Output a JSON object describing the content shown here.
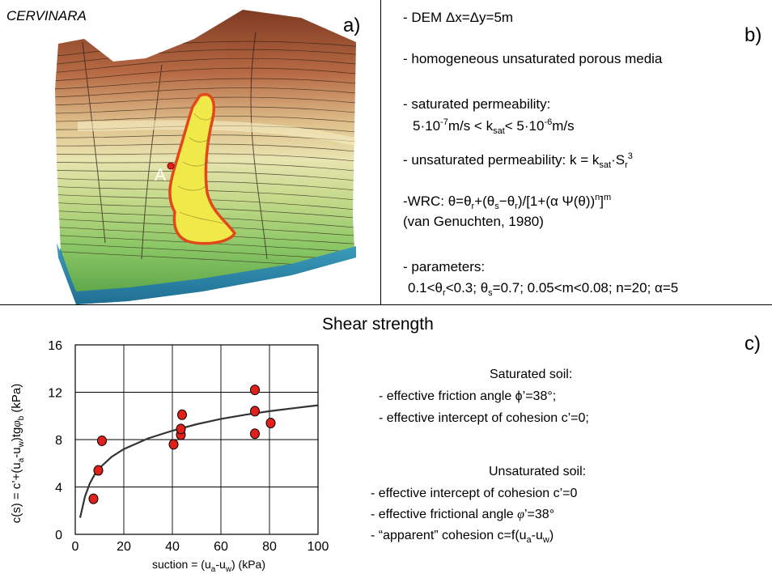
{
  "panel_a": {
    "site": "CERVINARA",
    "letter": "a)",
    "point_label": "A"
  },
  "panel_b": {
    "letter": "b)",
    "dem": "- DEM Δx=Δy=5m",
    "media": "- homogeneous unsaturated porous media",
    "sat_perm_title": "- saturated permeability:",
    "sat_perm_a": "5·10",
    "sat_perm_a_exp": "-7",
    "sat_perm_b": "m/s < k",
    "sat_perm_b_sub": "sat",
    "sat_perm_c": "< 5·10",
    "sat_perm_c_exp": "-6",
    "sat_perm_d": "m/s",
    "unsat_perm_a": "- unsaturated permeability: k = k",
    "unsat_perm_sub1": "sat",
    "unsat_perm_b": "·S",
    "unsat_perm_sub2": "r",
    "unsat_perm_sup": "3",
    "wrc_a": "-WRC: θ=θ",
    "wrc_r1": "r",
    "wrc_b": "+(θ",
    "wrc_s": "s",
    "wrc_c": "−θ",
    "wrc_r2": "r",
    "wrc_d": ")/[1+(α Ψ(θ))",
    "wrc_n": "n",
    "wrc_e": "]",
    "wrc_m": "m",
    "wrc_ref": "(van Genuchten, 1980)",
    "params_title": "- parameters:",
    "params_a": "0.1<θ",
    "params_r": "r",
    "params_b": "<0.3; θ",
    "params_s": "s",
    "params_c": "=0.7; 0.05<m<0.08; n=20; α=5"
  },
  "panel_c": {
    "letter": "c)",
    "title": "Shear strength",
    "saturated_head": "Saturated soil:",
    "sat_line1": "- effective friction angle ϕ’=38°;",
    "sat_line2": "- effective intercept of cohesion c’=0;",
    "unsaturated_head": "Unsaturated soil:",
    "unsat_line1": "- effective intercept of cohesion c’=0",
    "unsat_line2a": "- effective frictional angle ",
    "unsat_line2_phi": "φ",
    "unsat_line2b": "’=38°",
    "unsat_line3a": "- “apparent” cohesion c=f(u",
    "unsat_line3_a": "a",
    "unsat_line3b": "-u",
    "unsat_line3_w": "w",
    "unsat_line3c": ")"
  },
  "chart_data": {
    "type": "scatter",
    "xlabel": "suction = (u_a-u_w)   (kPa)",
    "ylabel": "c(s) = c'+(u_a-u_w)tgφ_b (kPa)",
    "xlim": [
      0,
      100
    ],
    "ylim": [
      0,
      16
    ],
    "x_ticks": [
      "0",
      "20",
      "40",
      "60",
      "80",
      "100"
    ],
    "y_ticks": [
      "0",
      "4",
      "8",
      "12",
      "16"
    ],
    "grid": true,
    "marker_color": "#e0201a",
    "points": [
      {
        "x": 7.5,
        "y": 3.0
      },
      {
        "x": 9.5,
        "y": 5.4
      },
      {
        "x": 11.0,
        "y": 7.9
      },
      {
        "x": 40.5,
        "y": 7.6
      },
      {
        "x": 43.5,
        "y": 8.4
      },
      {
        "x": 43.5,
        "y": 8.9
      },
      {
        "x": 44.0,
        "y": 10.1
      },
      {
        "x": 74.0,
        "y": 12.2
      },
      {
        "x": 74.0,
        "y": 10.4
      },
      {
        "x": 74.0,
        "y": 8.5
      },
      {
        "x": 80.5,
        "y": 9.4
      }
    ],
    "fit_curve": [
      {
        "x": 2,
        "y": 1.4
      },
      {
        "x": 4,
        "y": 3.2
      },
      {
        "x": 6,
        "y": 4.3
      },
      {
        "x": 8,
        "y": 5.05
      },
      {
        "x": 10,
        "y": 5.6
      },
      {
        "x": 15,
        "y": 6.55
      },
      {
        "x": 20,
        "y": 7.2
      },
      {
        "x": 30,
        "y": 8.1
      },
      {
        "x": 40,
        "y": 8.75
      },
      {
        "x": 50,
        "y": 9.3
      },
      {
        "x": 60,
        "y": 9.75
      },
      {
        "x": 70,
        "y": 10.1
      },
      {
        "x": 80,
        "y": 10.4
      },
      {
        "x": 90,
        "y": 10.65
      },
      {
        "x": 100,
        "y": 10.9
      }
    ]
  }
}
